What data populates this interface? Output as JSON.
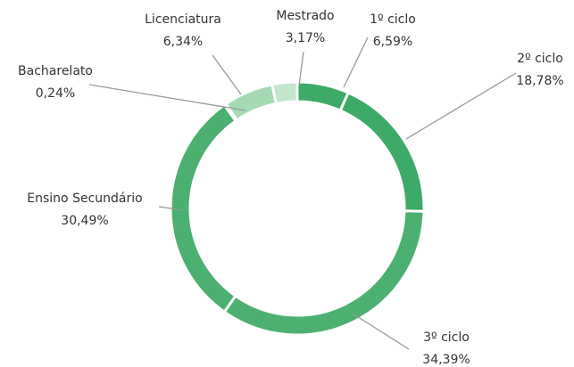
{
  "chart_data": {
    "type": "donut",
    "categories": [
      "1º ciclo",
      "2º ciclo",
      "3º ciclo",
      "Ensino Secundário",
      "Bacharelato",
      "Licenciatura",
      "Mestrado"
    ],
    "values": [
      6.59,
      18.78,
      34.39,
      30.49,
      0.24,
      6.34,
      3.17
    ],
    "value_labels": [
      "6,59%",
      "18,78%",
      "34,39%",
      "30,49%",
      "0,24%",
      "6,34%",
      "3,17%"
    ],
    "colors": [
      "#3eaa68",
      "#3eaa68",
      "#4cb070",
      "#4cb070",
      "#7cc694",
      "#a6dab4",
      "#c2e6cb"
    ]
  }
}
